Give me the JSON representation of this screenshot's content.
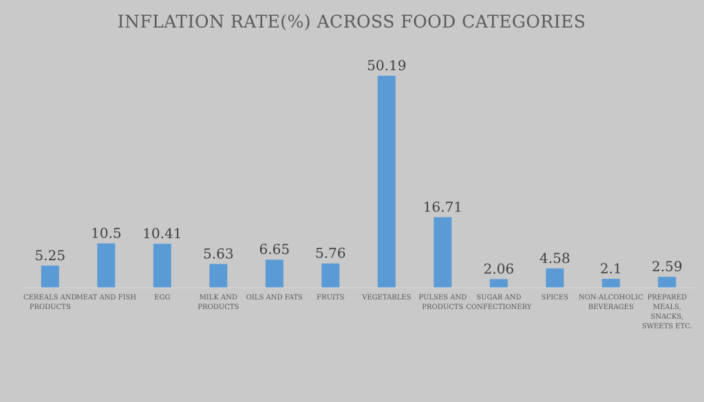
{
  "chart_data": {
    "type": "bar",
    "title": "INFLATION RATE(%) ACROSS FOOD CATEGORIES",
    "xlabel": "",
    "ylabel": "",
    "grid": false,
    "legend": false,
    "ylim": [
      0,
      55
    ],
    "categories": [
      [
        "CEREALS AND",
        "PRODUCTS"
      ],
      [
        "MEAT AND FISH"
      ],
      [
        "EGG"
      ],
      [
        "MILK AND",
        "PRODUCTS"
      ],
      [
        "OILS AND FATS"
      ],
      [
        "FRUITS"
      ],
      [
        "VEGETABLES"
      ],
      [
        "PULSES AND",
        "PRODUCTS"
      ],
      [
        "SUGAR AND",
        "CONFECTIONERY"
      ],
      [
        "SPICES"
      ],
      [
        "NON-ALCOHOLIC",
        "BEVERAGES"
      ],
      [
        "PREPARED",
        "MEALS,",
        "SNACKS,",
        "SWEETS ETC."
      ]
    ],
    "values": [
      5.25,
      10.5,
      10.41,
      5.63,
      6.65,
      5.76,
      50.19,
      16.71,
      2.06,
      4.58,
      2.1,
      2.59
    ],
    "value_labels": [
      "5.25",
      "10.5",
      "10.41",
      "5.63",
      "6.65",
      "5.76",
      "50.19",
      "16.71",
      "2.06",
      "4.58",
      "2.1",
      "2.59"
    ],
    "colors": {
      "bar": "#5b9bd5",
      "axis": "#d9d9d9",
      "background": "#c9c9c9"
    }
  }
}
